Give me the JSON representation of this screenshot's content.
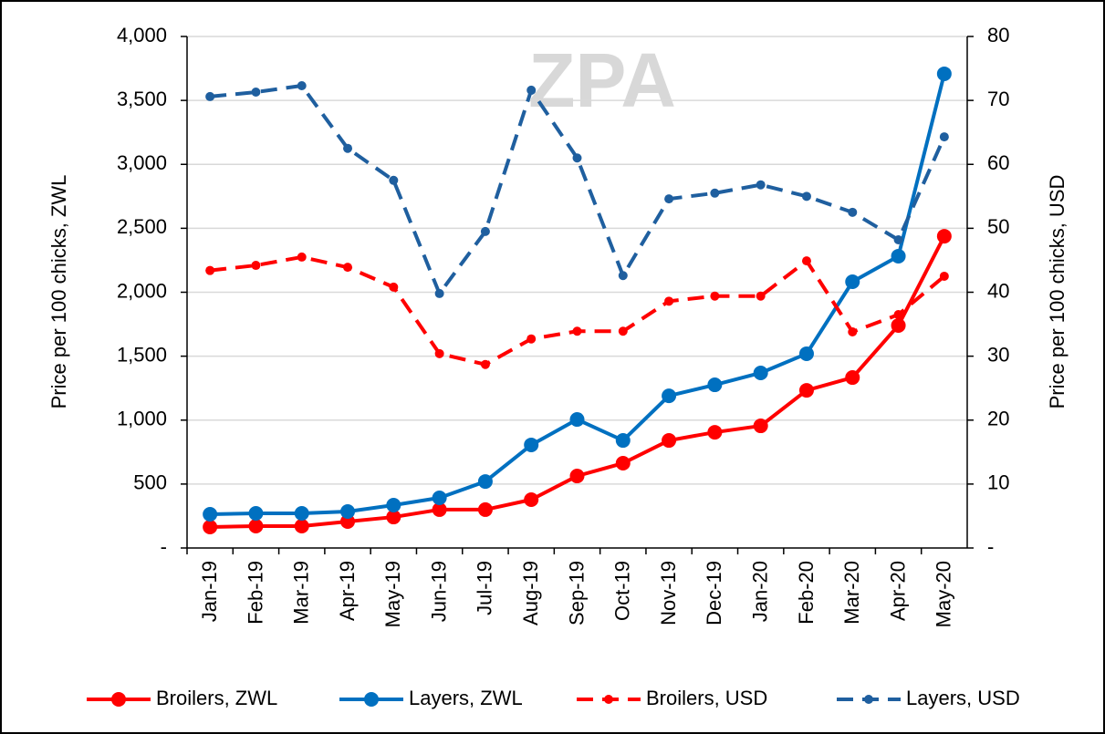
{
  "chart_data": {
    "type": "line",
    "watermark": "ZPA",
    "ylabel": "Price per 100 chicks, ZWL",
    "y2label": "Price per 100 chicks, USD",
    "categories": [
      "Jan-19",
      "Feb-19",
      "Mar-19",
      "Apr-19",
      "May-19",
      "Jun-19",
      "Jul-19",
      "Aug-19",
      "Sep-19",
      "Oct-19",
      "Nov-19",
      "Dec-19",
      "Jan-20",
      "Feb-20",
      "Mar-20",
      "Apr-20",
      "May-20"
    ],
    "ylim": [
      0,
      4000
    ],
    "yticks": [
      {
        "value": 0,
        "label": "-"
      },
      {
        "value": 500,
        "label": "500"
      },
      {
        "value": 1000,
        "label": "1,000"
      },
      {
        "value": 1500,
        "label": "1,500"
      },
      {
        "value": 2000,
        "label": "2,000"
      },
      {
        "value": 2500,
        "label": "2,500"
      },
      {
        "value": 3000,
        "label": "3,000"
      },
      {
        "value": 3500,
        "label": "3,500"
      },
      {
        "value": 4000,
        "label": "4,000"
      }
    ],
    "y2lim": [
      0,
      80
    ],
    "y2ticks": [
      {
        "value": 0,
        "label": "-"
      },
      10,
      20,
      30,
      40,
      50,
      60,
      70,
      80
    ],
    "grid": true,
    "legend": "bottom",
    "series": [
      {
        "name": "Broilers, ZWL",
        "color": "#ff0000",
        "dash": false,
        "axis": "y",
        "values": [
          164,
          171,
          171,
          207,
          242,
          300,
          300,
          378,
          563,
          663,
          841,
          905,
          955,
          1233,
          1333,
          1740,
          2438
        ]
      },
      {
        "name": "Layers, ZWL",
        "color": "#0070c0",
        "dash": false,
        "axis": "y",
        "values": [
          264,
          271,
          271,
          285,
          335,
          392,
          520,
          806,
          1005,
          841,
          1190,
          1276,
          1369,
          1519,
          2082,
          2282,
          3708
        ]
      },
      {
        "name": "Broilers, USD",
        "color": "#ff0000",
        "dash": true,
        "axis": "y2",
        "values": [
          43.4,
          44.2,
          45.5,
          43.9,
          40.8,
          30.4,
          28.7,
          32.7,
          33.9,
          33.9,
          38.6,
          39.4,
          39.4,
          44.9,
          33.8,
          36.5,
          42.5
        ]
      },
      {
        "name": "Layers, USD",
        "color": "#1f5f9f",
        "dash": true,
        "axis": "y2",
        "values": [
          70.6,
          71.3,
          72.3,
          62.5,
          57.5,
          39.8,
          49.5,
          71.6,
          61.0,
          42.6,
          54.6,
          55.5,
          56.8,
          55.0,
          52.5,
          48.2,
          64.3
        ]
      }
    ]
  }
}
